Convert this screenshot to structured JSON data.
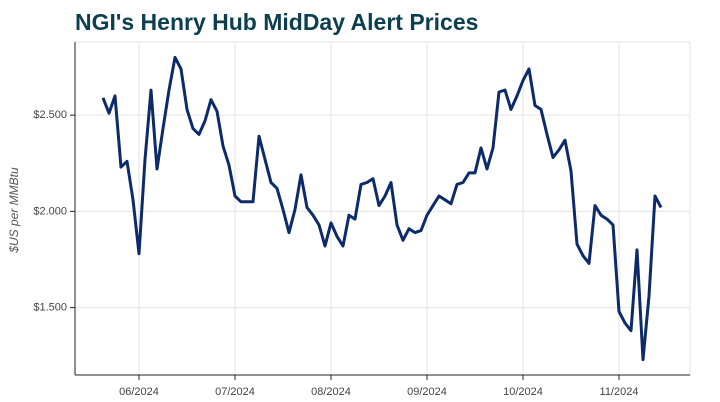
{
  "chart_data": {
    "type": "line",
    "title": "NGI's Henry Hub MidDay Alert Prices",
    "ylabel": "$US per MMBtu",
    "categories": [
      null,
      null,
      null,
      null,
      null,
      null,
      "06/2024",
      null,
      null,
      null,
      null,
      null,
      null,
      null,
      null,
      null,
      null,
      null,
      null,
      null,
      null,
      null,
      "07/2024",
      null,
      null,
      null,
      null,
      null,
      null,
      null,
      null,
      null,
      null,
      null,
      null,
      null,
      null,
      null,
      "08/2024",
      null,
      null,
      null,
      null,
      null,
      null,
      null,
      null,
      null,
      null,
      null,
      null,
      null,
      null,
      null,
      "09/2024",
      null,
      null,
      null,
      null,
      null,
      null,
      null,
      null,
      null,
      null,
      null,
      null,
      null,
      null,
      null,
      "10/2024",
      null,
      null,
      null,
      null,
      null,
      null,
      null,
      null,
      null,
      null,
      null,
      null,
      null,
      null,
      null,
      "11/2024",
      null,
      null,
      null,
      null,
      null,
      null,
      null
    ],
    "values": [
      2.59,
      2.51,
      2.6,
      2.23,
      2.26,
      2.06,
      1.78,
      2.27,
      2.63,
      2.22,
      2.43,
      2.63,
      2.8,
      2.74,
      2.53,
      2.43,
      2.4,
      2.47,
      2.58,
      2.52,
      2.34,
      2.24,
      2.08,
      2.05,
      2.05,
      2.05,
      2.39,
      2.27,
      2.15,
      2.12,
      2.01,
      1.89,
      2.01,
      2.19,
      2.02,
      1.98,
      1.93,
      1.82,
      1.94,
      1.87,
      1.82,
      1.98,
      1.96,
      2.14,
      2.15,
      2.17,
      2.03,
      2.08,
      2.15,
      1.93,
      1.85,
      1.91,
      1.89,
      1.9,
      1.98,
      2.03,
      2.08,
      2.06,
      2.04,
      2.14,
      2.15,
      2.2,
      2.2,
      2.33,
      2.22,
      2.33,
      2.62,
      2.63,
      2.53,
      2.6,
      2.68,
      2.74,
      2.55,
      2.53,
      2.4,
      2.28,
      2.32,
      2.37,
      2.21,
      1.83,
      1.77,
      1.73,
      2.03,
      1.98,
      1.96,
      1.93,
      1.48,
      1.42,
      1.38,
      1.8,
      1.23,
      1.56,
      2.08,
      2.02
    ],
    "color": "#0d2a6b",
    "ylim": [
      1.15,
      2.88
    ],
    "yticks": [
      {
        "value": 1.5,
        "label": "$1.500"
      },
      {
        "value": 2.0,
        "label": "$2.000"
      },
      {
        "value": 2.5,
        "label": "$2.500"
      }
    ],
    "grid": true
  }
}
